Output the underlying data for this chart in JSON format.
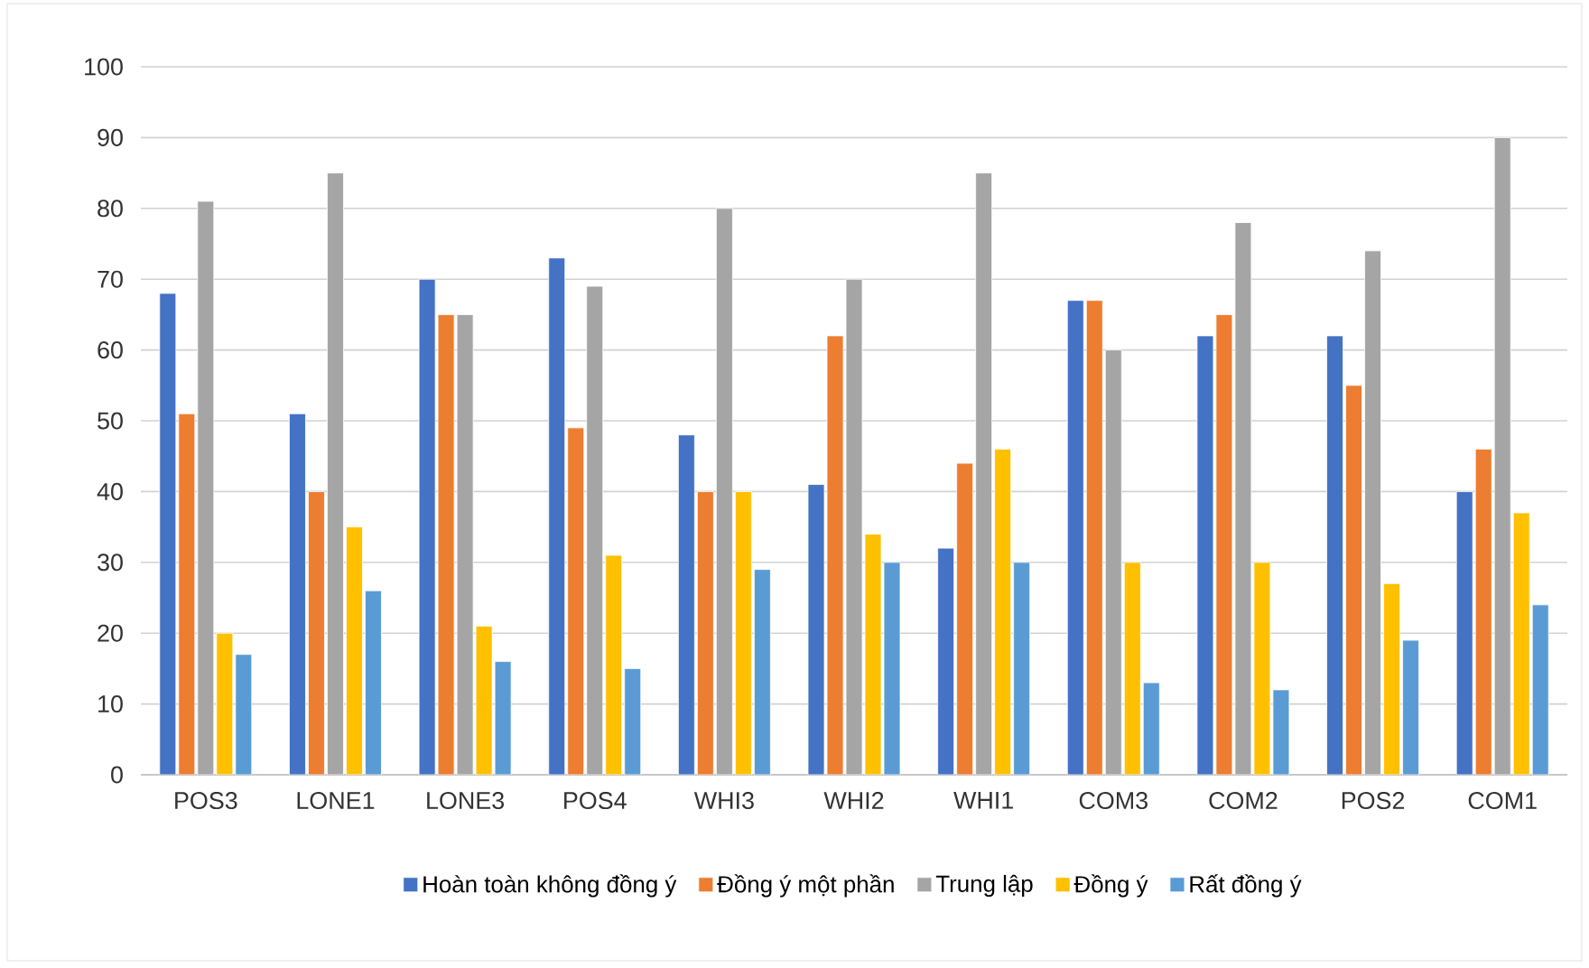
{
  "chart_data": {
    "type": "bar",
    "categories": [
      "POS3",
      "LONE1",
      "LONE3",
      "POS4",
      "WHI3",
      "WHI2",
      "WHI1",
      "COM3",
      "COM2",
      "POS2",
      "COM1"
    ],
    "series": [
      {
        "name": "Hoàn toàn không đồng ý",
        "color": "#4472c4",
        "values": [
          68,
          51,
          70,
          73,
          48,
          41,
          32,
          67,
          62,
          62,
          40
        ]
      },
      {
        "name": "Đồng ý một phần",
        "color": "#ed7d31",
        "values": [
          51,
          40,
          65,
          49,
          40,
          62,
          44,
          67,
          65,
          55,
          46
        ]
      },
      {
        "name": "Trung lập",
        "color": "#a5a5a5",
        "values": [
          81,
          85,
          65,
          69,
          80,
          70,
          85,
          60,
          78,
          74,
          90
        ]
      },
      {
        "name": "Đồng ý",
        "color": "#ffc000",
        "values": [
          20,
          35,
          21,
          31,
          40,
          34,
          46,
          30,
          30,
          27,
          37
        ]
      },
      {
        "name": "Rất đồng ý",
        "color": "#5b9bd5",
        "values": [
          17,
          26,
          16,
          15,
          29,
          30,
          30,
          13,
          12,
          19,
          24
        ]
      }
    ],
    "ylim": [
      0,
      100
    ],
    "yticks": [
      0,
      10,
      20,
      30,
      40,
      50,
      60,
      70,
      80,
      90,
      100
    ],
    "grid": "y",
    "legend": "bottom"
  }
}
